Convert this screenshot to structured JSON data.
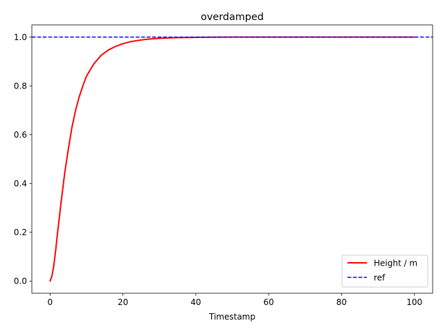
{
  "chart_data": {
    "type": "line",
    "title": "overdamped",
    "xlabel": "Timestamp",
    "ylabel": "",
    "xlim": [
      -5,
      105
    ],
    "ylim": [
      -0.05,
      1.05
    ],
    "xticks": [
      0,
      20,
      40,
      60,
      80,
      100
    ],
    "yticks": [
      0.0,
      0.2,
      0.4,
      0.6,
      0.8,
      1.0
    ],
    "xtick_labels": [
      "0",
      "20",
      "40",
      "60",
      "80",
      "100"
    ],
    "ytick_labels": [
      "0.0",
      "0.2",
      "0.4",
      "0.6",
      "0.8",
      "1.0"
    ],
    "grid": false,
    "legend_position": "bottom-right",
    "series": [
      {
        "name": "Height / m",
        "style": "solid",
        "color": "#ff0000",
        "x": [
          0,
          0.5,
          1,
          1.5,
          2,
          3,
          4,
          5,
          6,
          7,
          8,
          9,
          10,
          12,
          14,
          16,
          18,
          20,
          22,
          24,
          26,
          28,
          30,
          33,
          36,
          40,
          45,
          50,
          60,
          70,
          80,
          90,
          100
        ],
        "y": [
          0,
          0.02,
          0.06,
          0.12,
          0.19,
          0.32,
          0.44,
          0.54,
          0.63,
          0.7,
          0.755,
          0.8,
          0.84,
          0.89,
          0.925,
          0.947,
          0.962,
          0.973,
          0.981,
          0.986,
          0.99,
          0.993,
          0.995,
          0.997,
          0.998,
          0.999,
          0.9995,
          1.0,
          1.0,
          1.0,
          1.0,
          1.0,
          1.0
        ]
      },
      {
        "name": "ref",
        "style": "dashed",
        "color": "#0000ff",
        "x": [
          -5,
          105
        ],
        "y": [
          1.0,
          1.0
        ]
      }
    ]
  }
}
